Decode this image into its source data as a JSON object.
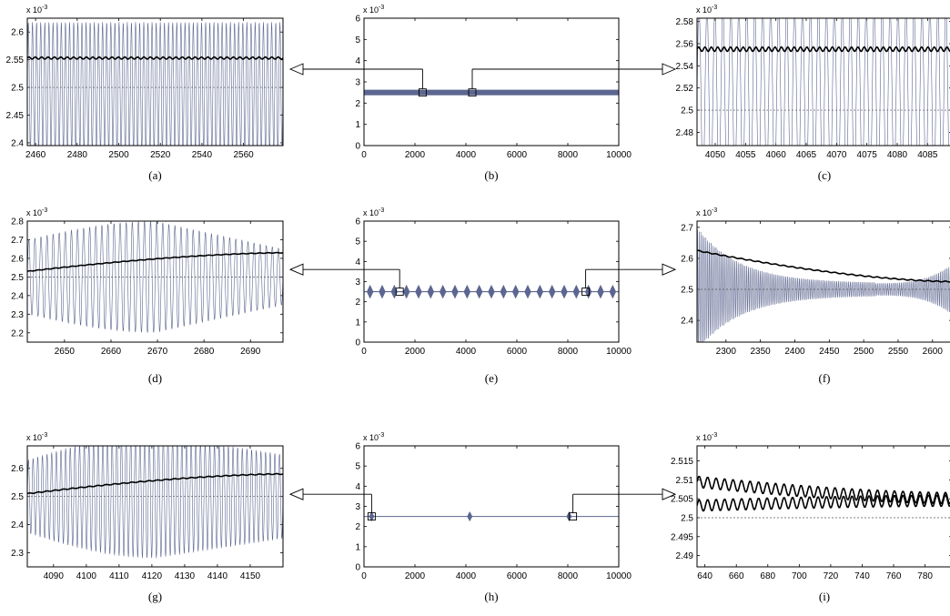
{
  "figure": {
    "charts": [
      {
        "panel": "(a)",
        "kind": "zoom",
        "x_ticks": [
          2460,
          2480,
          2500,
          2520,
          2540,
          2560
        ],
        "x_range": [
          2456,
          2579
        ],
        "y_ticks": [
          "2.4",
          "2.45",
          "2.5",
          "2.55",
          "2.6"
        ],
        "y_range": [
          2.395,
          2.625
        ],
        "y_exponent": "x 10^-3"
      },
      {
        "panel": "(b)",
        "kind": "overview",
        "x_ticks": [
          0,
          2000,
          4000,
          6000,
          8000,
          10000
        ],
        "x_range": [
          0,
          10000
        ],
        "y_ticks": [
          "0",
          "1",
          "2",
          "3",
          "4",
          "5",
          "6"
        ],
        "y_range": [
          0,
          6
        ],
        "y_exponent": "x 10^-3"
      },
      {
        "panel": "(c)",
        "kind": "zoom",
        "x_ticks": [
          4050,
          4055,
          4060,
          4065,
          4070,
          4075,
          4080,
          4085
        ],
        "x_range": [
          4047,
          4089
        ],
        "y_ticks": [
          "2.48",
          "2.5",
          "2.52",
          "2.54",
          "2.56",
          "2.58"
        ],
        "y_range": [
          2.468,
          2.583
        ],
        "y_exponent": "x 10^-3"
      },
      {
        "panel": "(d)",
        "kind": "zoom",
        "x_ticks": [
          2650,
          2660,
          2670,
          2680,
          2690
        ],
        "x_range": [
          2642,
          2697
        ],
        "y_ticks": [
          "2.2",
          "2.3",
          "2.4",
          "2.5",
          "2.6",
          "2.7",
          "2.8"
        ],
        "y_range": [
          2.15,
          2.8
        ],
        "y_exponent": "x 10^-3"
      },
      {
        "panel": "(e)",
        "kind": "overview",
        "x_ticks": [
          0,
          2000,
          4000,
          6000,
          8000,
          10000
        ],
        "x_range": [
          0,
          10000
        ],
        "y_ticks": [
          "0",
          "1",
          "2",
          "3",
          "4",
          "5",
          "6"
        ],
        "y_range": [
          0,
          6
        ],
        "y_exponent": "x 10^-3"
      },
      {
        "panel": "(f)",
        "kind": "zoom",
        "x_ticks": [
          2300,
          2350,
          2400,
          2450,
          2500,
          2550,
          2600
        ],
        "x_range": [
          2258,
          2628
        ],
        "y_ticks": [
          "2.4",
          "2.5",
          "2.6",
          "2.7"
        ],
        "y_range": [
          2.33,
          2.72
        ],
        "y_exponent": "x 10^-3"
      },
      {
        "panel": "(g)",
        "kind": "zoom",
        "x_ticks": [
          4090,
          4100,
          4110,
          4120,
          4130,
          4140,
          4150
        ],
        "x_range": [
          4082,
          4160
        ],
        "y_ticks": [
          "2.3",
          "2.4",
          "2.5",
          "2.6"
        ],
        "y_range": [
          2.25,
          2.68
        ],
        "y_exponent": "x 10^-3"
      },
      {
        "panel": "(h)",
        "kind": "overview",
        "x_ticks": [
          0,
          2000,
          4000,
          6000,
          8000,
          10000
        ],
        "x_range": [
          0,
          10000
        ],
        "y_ticks": [
          "0",
          "1",
          "2",
          "3",
          "4",
          "5",
          "6"
        ],
        "y_range": [
          0,
          6
        ],
        "y_exponent": "x 10^-3"
      },
      {
        "panel": "(i)",
        "kind": "zoom",
        "x_ticks": [
          640,
          660,
          680,
          700,
          720,
          740,
          760,
          780
        ],
        "x_range": [
          635,
          797
        ],
        "y_ticks": [
          "2.49",
          "2.495",
          "2.5",
          "2.505",
          "2.51",
          "2.515"
        ],
        "y_range": [
          2.487,
          2.519
        ],
        "y_exponent": "x 10^-3"
      }
    ]
  },
  "chart_data": [
    {
      "type": "line",
      "panel": "(a)",
      "xlim": [
        2456,
        2579
      ],
      "ylim": [
        2.395,
        2.625
      ],
      "y_scale_label": "x 10^-3",
      "series": [
        {
          "values": {
            "kind": "oscillation",
            "center": 2.5,
            "amplitude": 0.118,
            "periods": 62
          }
        },
        {
          "values": {
            "kind": "mean",
            "level": 2.553,
            "ripple": 0.002
          }
        },
        {
          "values": {
            "kind": "reference",
            "level": 2.5
          }
        }
      ]
    },
    {
      "type": "line",
      "panel": "(b)",
      "xlim": [
        0,
        10000
      ],
      "ylim": [
        0,
        6
      ],
      "y_scale_label": "x 10^-3",
      "series": [
        {
          "values": {
            "kind": "band",
            "center": 2.5,
            "half_width": 0.13
          }
        }
      ],
      "zoom_boxes": [
        {
          "x": 2300,
          "y": 2.5,
          "to": "(a)"
        },
        {
          "x": 4250,
          "y": 2.5,
          "to": "(c)"
        }
      ]
    },
    {
      "type": "line",
      "panel": "(c)",
      "xlim": [
        4047,
        4089
      ],
      "ylim": [
        2.468,
        2.583
      ],
      "y_scale_label": "x 10^-3",
      "series": [
        {
          "values": {
            "kind": "oscillation",
            "center": 2.513,
            "amplitude": 0.08,
            "periods": 32
          }
        },
        {
          "values": {
            "kind": "mean",
            "level": 2.555,
            "ripple": 0.002
          }
        },
        {
          "values": {
            "kind": "reference",
            "level": 2.5
          }
        }
      ]
    },
    {
      "type": "line",
      "panel": "(d)",
      "xlim": [
        2642,
        2697
      ],
      "ylim": [
        2.15,
        2.8
      ],
      "y_scale_label": "x 10^-3",
      "series": [
        {
          "values": {
            "kind": "oscillation",
            "center": 2.5,
            "amplitude_start": 0.2,
            "amplitude_peak": 0.3,
            "amplitude_end": 0.15,
            "periods": 42
          }
        },
        {
          "values": {
            "kind": "mean",
            "start": 2.53,
            "end": 2.63
          }
        },
        {
          "values": {
            "kind": "reference",
            "level": 2.5
          }
        }
      ]
    },
    {
      "type": "line",
      "panel": "(e)",
      "xlim": [
        0,
        10000
      ],
      "ylim": [
        0,
        6
      ],
      "y_scale_label": "x 10^-3",
      "series": [
        {
          "values": {
            "kind": "beats",
            "center": 2.5,
            "amplitude": 0.35,
            "count": 21
          }
        }
      ],
      "zoom_boxes": [
        {
          "x": 1400,
          "y": 2.5,
          "to": "(d)"
        },
        {
          "x": 8700,
          "y": 2.5,
          "to": "(f)"
        }
      ]
    },
    {
      "type": "line",
      "panel": "(f)",
      "xlim": [
        2258,
        2628
      ],
      "ylim": [
        2.33,
        2.72
      ],
      "y_scale_label": "x 10^-3",
      "series": [
        {
          "values": {
            "kind": "decay_envelope",
            "center": 2.5,
            "amplitude_start": 0.2,
            "amplitude_min": 0.02,
            "amplitude_end": 0.08
          }
        },
        {
          "values": {
            "kind": "mean",
            "start": 2.625,
            "end": 2.525
          }
        },
        {
          "values": {
            "kind": "reference",
            "level": 2.5
          }
        }
      ]
    },
    {
      "type": "line",
      "panel": "(g)",
      "xlim": [
        4082,
        4160
      ],
      "ylim": [
        2.25,
        2.68
      ],
      "y_scale_label": "x 10^-3",
      "series": [
        {
          "values": {
            "kind": "oscillation",
            "center": 2.5,
            "amplitude_start": 0.13,
            "amplitude_peak": 0.22,
            "amplitude_end": 0.15,
            "periods": 55
          }
        },
        {
          "values": {
            "kind": "mean",
            "start": 2.51,
            "end": 2.58
          }
        },
        {
          "values": {
            "kind": "reference",
            "level": 2.5
          }
        }
      ]
    },
    {
      "type": "line",
      "panel": "(h)",
      "xlim": [
        0,
        10000
      ],
      "ylim": [
        0,
        6
      ],
      "y_scale_label": "x 10^-3",
      "series": [
        {
          "values": {
            "kind": "sparse_beats",
            "center": 2.5,
            "amplitude": 0.25,
            "at": [
              300,
              4150,
              8050
            ]
          }
        }
      ],
      "zoom_boxes": [
        {
          "x": 300,
          "y": 2.5,
          "to": "(g)"
        },
        {
          "x": 8200,
          "y": 2.5,
          "to": "(i)"
        }
      ]
    },
    {
      "type": "line",
      "panel": "(i)",
      "xlim": [
        635,
        797
      ],
      "ylim": [
        2.487,
        2.519
      ],
      "y_scale_label": "x 10^-3",
      "series": [
        {
          "values": {
            "kind": "mean",
            "start": 2.5095,
            "end": 2.5052
          }
        },
        {
          "values": {
            "kind": "mean",
            "start": 2.5032,
            "end": 2.5045
          }
        },
        {
          "values": {
            "kind": "reference",
            "level": 2.5
          }
        }
      ]
    }
  ],
  "colors": {
    "oscillation": "#5c6690",
    "mean": "#000000",
    "reference": "#555555",
    "band": "#5c6690",
    "axes": "#000000"
  }
}
